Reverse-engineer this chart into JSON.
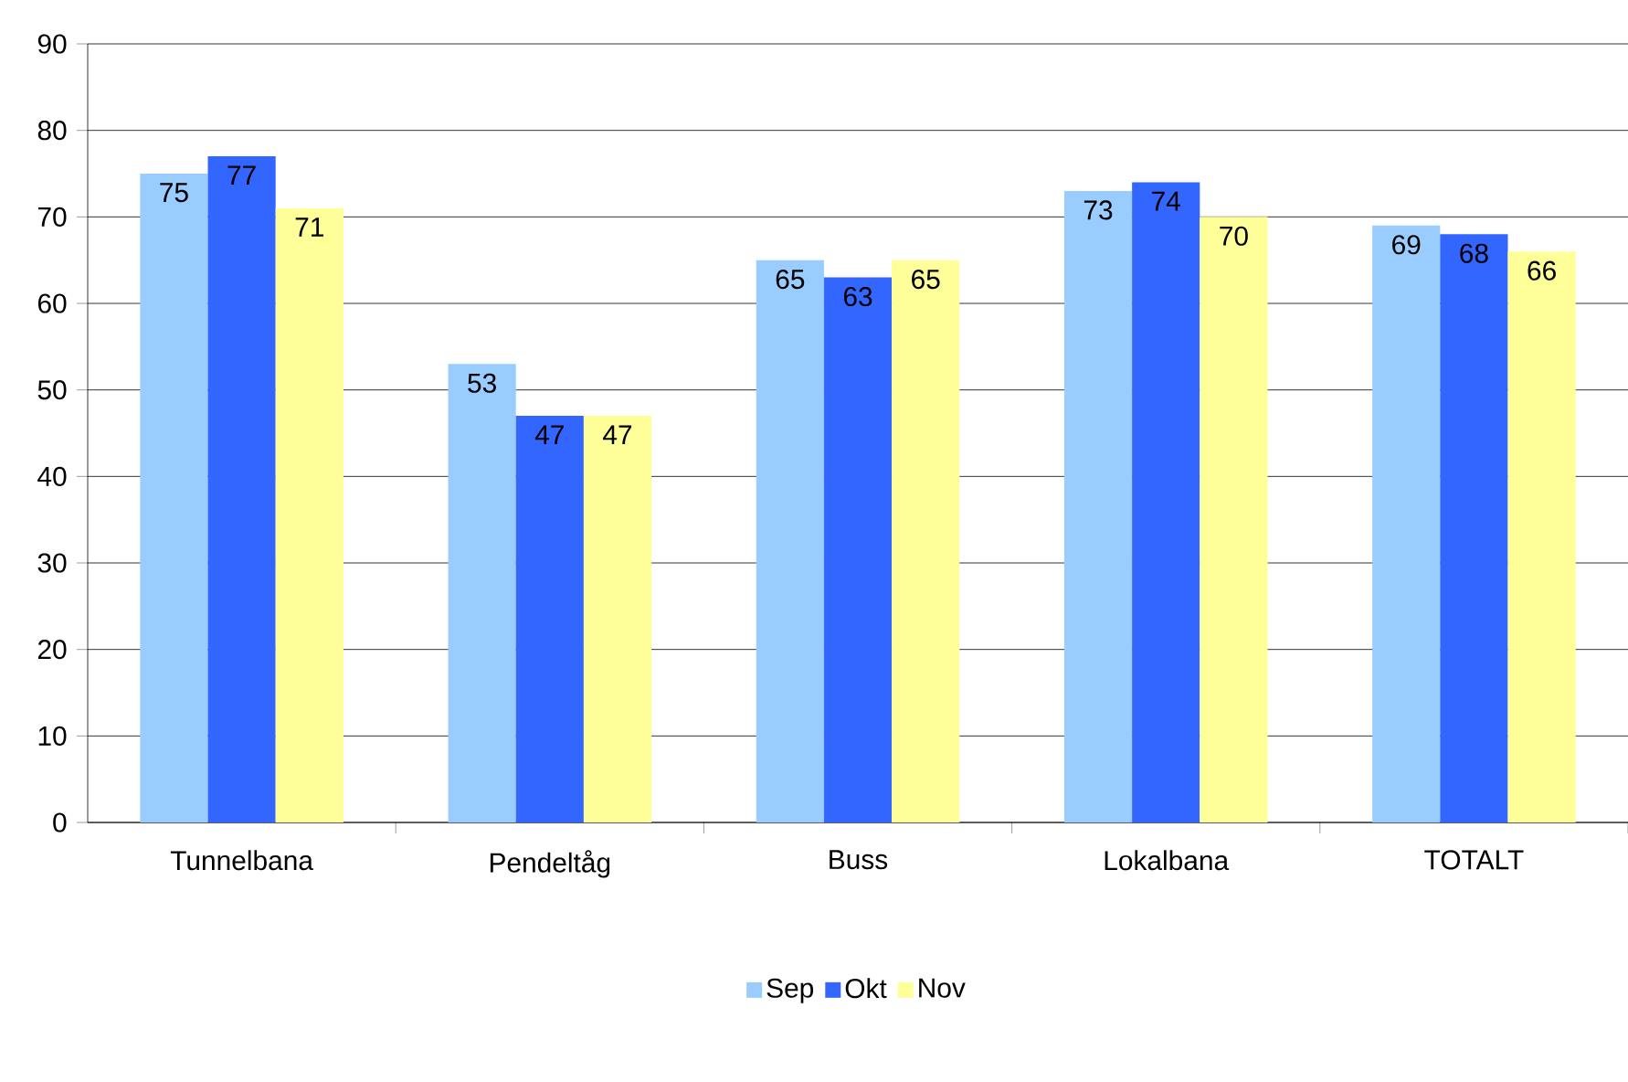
{
  "chart_data": {
    "type": "bar",
    "categories": [
      "Tunnelbana",
      "Pendeltåg",
      "Buss",
      "Lokalbana",
      "TOTALT"
    ],
    "series": [
      {
        "name": "Sep",
        "color": "#99ccff",
        "values": [
          75,
          53,
          65,
          73,
          69
        ]
      },
      {
        "name": "Okt",
        "color": "#3366ff",
        "values": [
          77,
          47,
          63,
          74,
          68
        ]
      },
      {
        "name": "Nov",
        "color": "#ffff99",
        "values": [
          71,
          47,
          65,
          70,
          66
        ]
      }
    ],
    "ylim": [
      0,
      90
    ],
    "yticks": [
      0,
      10,
      20,
      30,
      40,
      50,
      60,
      70,
      80,
      90
    ],
    "grid": "y",
    "legend": "bottom",
    "data_labels": true
  }
}
